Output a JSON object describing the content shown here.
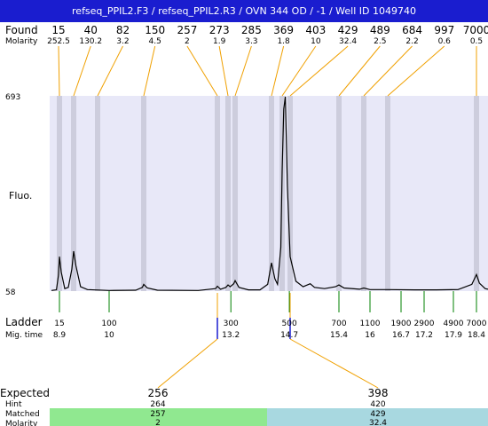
{
  "title": "refseq_PPIL2.F3 / refseq_PPIL2.R3 / OVN 344 OD / -1 / Well ID 1049740",
  "labels": {
    "found": "Found",
    "molarity": "Molarity",
    "fluo": "Fluo.",
    "ladder": "Ladder",
    "mig_time": "Mig. time",
    "expected": "Expected",
    "hint": "Hint",
    "matched": "Matched",
    "molarity_bottom": "Molarity"
  },
  "colors": {
    "title_bg": "#1a1dcf",
    "plot_bg": "#e8e8f8",
    "band": "#c8c8d8",
    "leader": "#f0a000",
    "ladder_tick": "#008000",
    "matched_left": "#90e890",
    "matched_right": "#a8d8e0",
    "trace": "#000000"
  },
  "chart_data": {
    "type": "line",
    "ylim": [
      58,
      693
    ],
    "yticks": [
      "693",
      "58"
    ],
    "x_axis": "migration time",
    "found_peaks": [
      {
        "size": "15",
        "molarity": "252.5",
        "time": 8.9
      },
      {
        "size": "40",
        "molarity": "130.2",
        "time": 9.3
      },
      {
        "size": "82",
        "molarity": "3.2",
        "time": 9.82
      },
      {
        "size": "150",
        "molarity": "4.5",
        "time": 11.3
      },
      {
        "size": "257",
        "molarity": "2",
        "time": 12.92
      },
      {
        "size": "273",
        "molarity": "1.9",
        "time": 13.12
      },
      {
        "size": "285",
        "molarity": "3.3",
        "time": 13.32
      },
      {
        "size": "369",
        "molarity": "1.8",
        "time": 14.2
      },
      {
        "size": "403",
        "molarity": "10",
        "time": 14.52
      },
      {
        "size": "429",
        "molarity": "32.4",
        "time": 14.72
      },
      {
        "size": "489",
        "molarity": "2.5",
        "time": 15.4
      },
      {
        "size": "684",
        "molarity": "2.2",
        "time": 15.88
      },
      {
        "size": "997",
        "molarity": "0.6",
        "time": 16.4
      },
      {
        "size": "7000",
        "molarity": "0.5",
        "time": 18.4
      }
    ],
    "trace": [
      [
        8.5,
        60
      ],
      [
        8.75,
        62
      ],
      [
        8.85,
        110
      ],
      [
        8.9,
        170
      ],
      [
        8.95,
        120
      ],
      [
        9.05,
        66
      ],
      [
        9.15,
        70
      ],
      [
        9.25,
        130
      ],
      [
        9.3,
        188
      ],
      [
        9.35,
        140
      ],
      [
        9.45,
        72
      ],
      [
        9.6,
        63
      ],
      [
        10.0,
        60
      ],
      [
        11.0,
        61
      ],
      [
        11.25,
        70
      ],
      [
        11.3,
        80
      ],
      [
        11.38,
        68
      ],
      [
        11.6,
        61
      ],
      [
        12.5,
        60
      ],
      [
        12.88,
        66
      ],
      [
        12.92,
        74
      ],
      [
        12.98,
        64
      ],
      [
        13.08,
        70
      ],
      [
        13.12,
        78
      ],
      [
        13.18,
        72
      ],
      [
        13.28,
        82
      ],
      [
        13.32,
        92
      ],
      [
        13.4,
        70
      ],
      [
        13.6,
        62
      ],
      [
        13.9,
        62
      ],
      [
        14.1,
        80
      ],
      [
        14.2,
        150
      ],
      [
        14.3,
        98
      ],
      [
        14.38,
        80
      ],
      [
        14.48,
        200
      ],
      [
        14.52,
        450
      ],
      [
        14.56,
        650
      ],
      [
        14.6,
        690
      ],
      [
        14.65,
        400
      ],
      [
        14.72,
        170
      ],
      [
        14.8,
        90
      ],
      [
        14.9,
        72
      ],
      [
        15.0,
        82
      ],
      [
        15.06,
        70
      ],
      [
        15.2,
        66
      ],
      [
        15.35,
        72
      ],
      [
        15.4,
        78
      ],
      [
        15.5,
        68
      ],
      [
        15.8,
        64
      ],
      [
        15.88,
        68
      ],
      [
        16.0,
        63
      ],
      [
        16.4,
        63
      ],
      [
        17.0,
        62
      ],
      [
        17.5,
        62
      ],
      [
        18.0,
        63
      ],
      [
        18.3,
        80
      ],
      [
        18.4,
        112
      ],
      [
        18.5,
        84
      ],
      [
        18.7,
        66
      ],
      [
        18.8,
        64
      ]
    ],
    "ladder": [
      {
        "size": "15",
        "time": "8.9",
        "t": 8.9
      },
      {
        "size": "100",
        "time": "10",
        "t": 10.0
      },
      {
        "size": "300",
        "time": "13.2",
        "t": 13.2
      },
      {
        "size": "500",
        "time": "14.7",
        "t": 14.7
      },
      {
        "size": "700",
        "time": "15.4",
        "t": 15.4
      },
      {
        "size": "1100",
        "time": "16",
        "t": 16.0
      },
      {
        "size": "1900",
        "time": "16.7",
        "t": 16.7
      },
      {
        "size": "2900",
        "time": "17.2",
        "t": 17.2
      },
      {
        "size": "4900",
        "time": "17.9",
        "t": 17.9
      },
      {
        "size": "7000",
        "time": "18.4",
        "t": 18.4
      }
    ],
    "expected": [
      {
        "size": "256",
        "hint": "264",
        "matched": "257",
        "molarity": "2",
        "time": 12.92
      },
      {
        "size": "398",
        "hint": "420",
        "matched": "429",
        "molarity": "32.4",
        "time": 14.72
      }
    ]
  }
}
